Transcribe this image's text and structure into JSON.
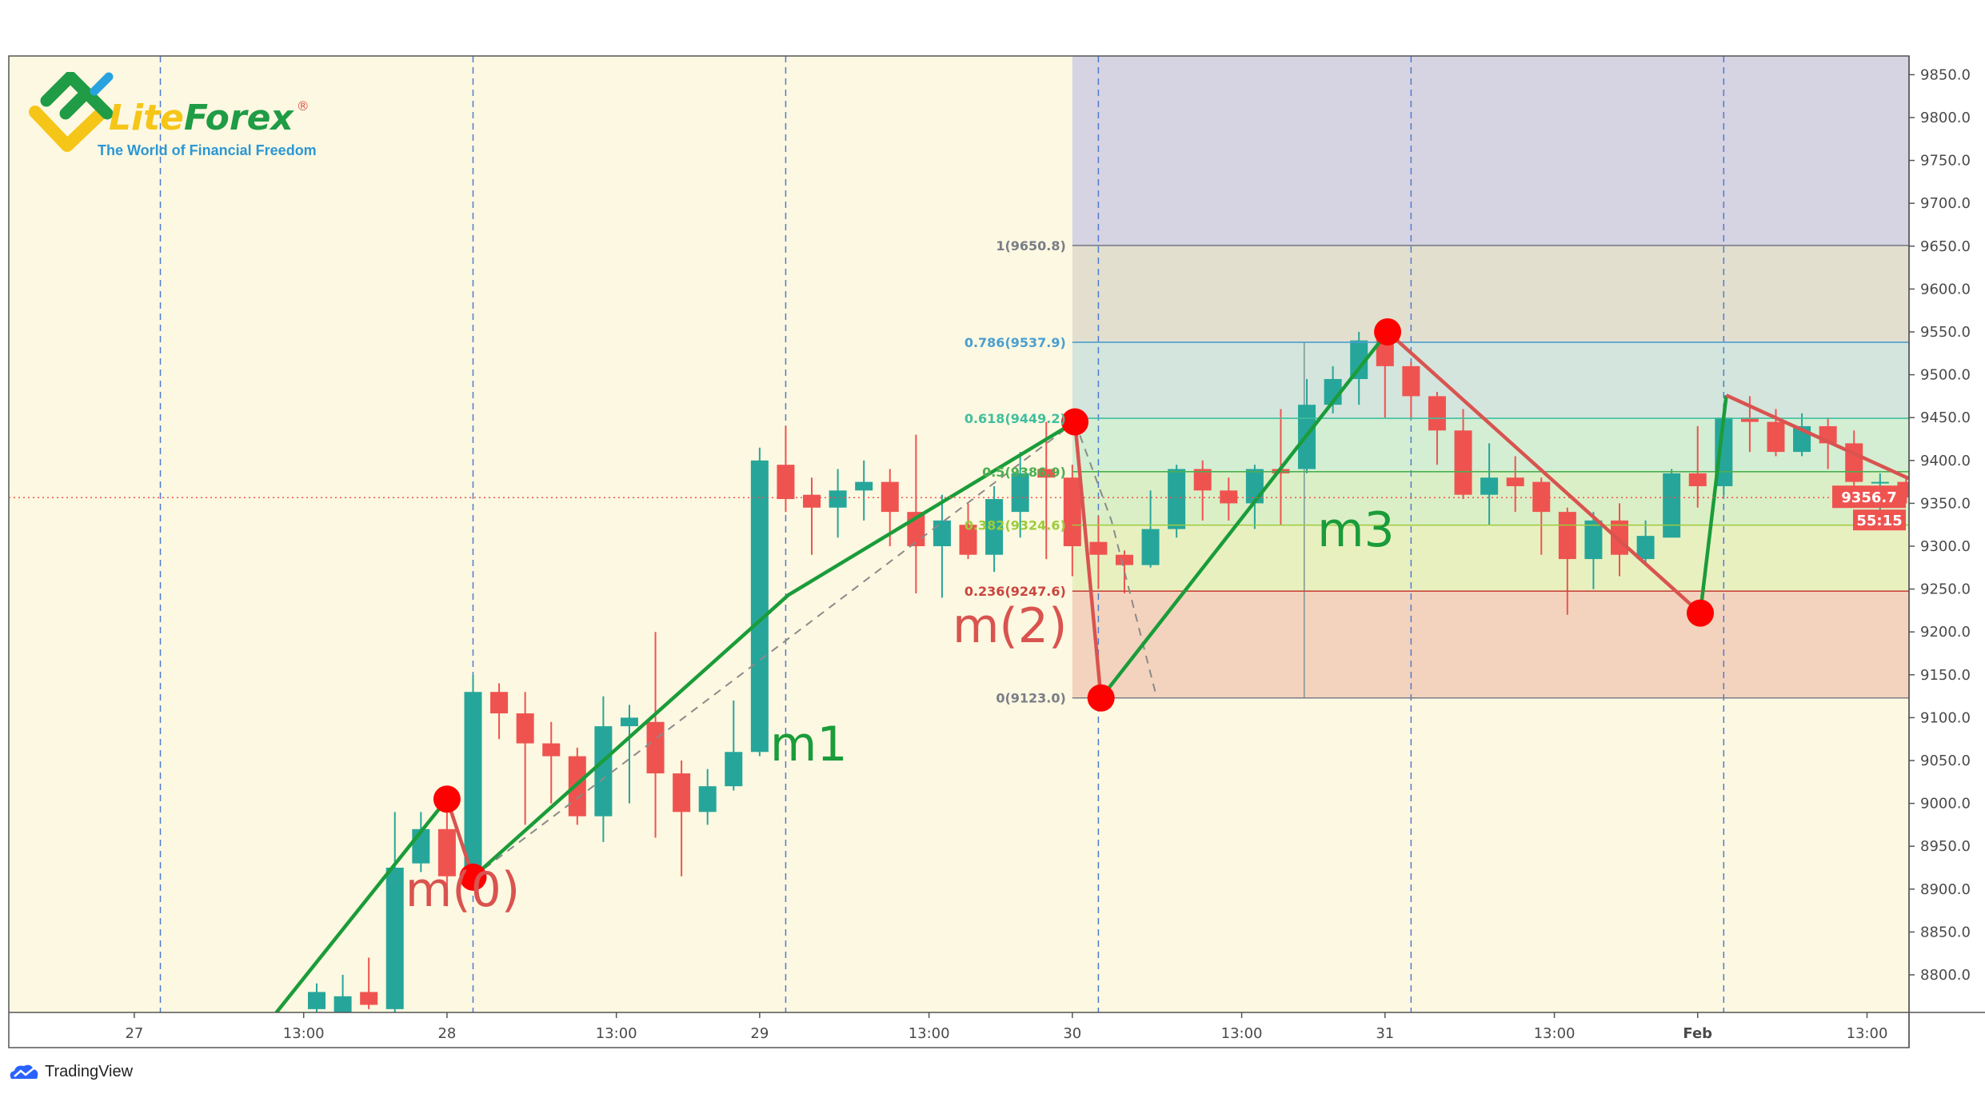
{
  "logo": {
    "brand_lite": "Lite",
    "brand_forex": "Forex",
    "registered": "®",
    "tagline": "The World of Financial Freedom"
  },
  "footer": {
    "tradingview_label": "TradingView"
  },
  "colors": {
    "up": "#26a69a",
    "down": "#ef5350",
    "background": "#fdf8e1",
    "wave_up": "#1a9c3a",
    "wave_down": "#d9534f",
    "pivot": "#ff0000",
    "day_line": "#4f7bd1"
  },
  "chart_data": {
    "type": "candlestick",
    "title": "",
    "interval_hours": 2,
    "first_candle": "27 14:00",
    "ylim": [
      8760,
      9880
    ],
    "y_ticks": [
      "9850.0",
      "9800.0",
      "9750.0",
      "9700.0",
      "9650.0",
      "9600.0",
      "9550.0",
      "9500.0",
      "9450.0",
      "9400.0",
      "9350.0",
      "9300.0",
      "9250.0",
      "9200.0",
      "9150.0",
      "9100.0",
      "9050.0",
      "9000.0",
      "8950.0",
      "8900.0",
      "8850.0",
      "8800.0"
    ],
    "x_ticks": [
      {
        "label": "27",
        "index": -7,
        "bold": false
      },
      {
        "label": "13:00",
        "index": -0.5,
        "bold": false
      },
      {
        "label": "28",
        "index": 5,
        "bold": false
      },
      {
        "label": "13:00",
        "index": 11.5,
        "bold": false
      },
      {
        "label": "29",
        "index": 17,
        "bold": false
      },
      {
        "label": "13:00",
        "index": 23.5,
        "bold": false
      },
      {
        "label": "30",
        "index": 29,
        "bold": false
      },
      {
        "label": "13:00",
        "index": 35.5,
        "bold": false
      },
      {
        "label": "31",
        "index": 41,
        "bold": false
      },
      {
        "label": "13:00",
        "index": 47.5,
        "bold": false
      },
      {
        "label": "Feb",
        "index": 53,
        "bold": true
      },
      {
        "label": "13:00",
        "index": 59.5,
        "bold": false
      }
    ],
    "day_separators": [
      -6,
      6,
      18,
      30,
      42,
      54
    ],
    "candles": [
      [
        8760,
        8790,
        8750,
        8780
      ],
      [
        8755,
        8800,
        8745,
        8775
      ],
      [
        8780,
        8820,
        8760,
        8765
      ],
      [
        8760,
        8990,
        8750,
        8925
      ],
      [
        8930,
        8990,
        8920,
        8970
      ],
      [
        8970,
        9010,
        8880,
        8915
      ],
      [
        8915,
        9150,
        8910,
        9130
      ],
      [
        9130,
        9140,
        9075,
        9105
      ],
      [
        9105,
        9130,
        8975,
        9070
      ],
      [
        9070,
        9095,
        9000,
        9055
      ],
      [
        9055,
        9065,
        8975,
        8985
      ],
      [
        8985,
        9125,
        8955,
        9090
      ],
      [
        9090,
        9115,
        9000,
        9100
      ],
      [
        9095,
        9200,
        8960,
        9035
      ],
      [
        9035,
        9050,
        8915,
        8990
      ],
      [
        8990,
        9040,
        8975,
        9020
      ],
      [
        9020,
        9120,
        9015,
        9060
      ],
      [
        9060,
        9415,
        9055,
        9400
      ],
      [
        9395,
        9440,
        9340,
        9355
      ],
      [
        9360,
        9380,
        9290,
        9345
      ],
      [
        9345,
        9390,
        9310,
        9365
      ],
      [
        9365,
        9400,
        9330,
        9375
      ],
      [
        9375,
        9390,
        9300,
        9340
      ],
      [
        9340,
        9430,
        9245,
        9300
      ],
      [
        9300,
        9360,
        9240,
        9330
      ],
      [
        9325,
        9350,
        9285,
        9290
      ],
      [
        9290,
        9370,
        9270,
        9355
      ],
      [
        9340,
        9410,
        9310,
        9385
      ],
      [
        9390,
        9445,
        9285,
        9380
      ],
      [
        9380,
        9395,
        9265,
        9300
      ],
      [
        9305,
        9335,
        9250,
        9290
      ],
      [
        9290,
        9295,
        9245,
        9278
      ],
      [
        9278,
        9365,
        9275,
        9320
      ],
      [
        9320,
        9395,
        9310,
        9390
      ],
      [
        9390,
        9400,
        9330,
        9365
      ],
      [
        9365,
        9380,
        9330,
        9350
      ],
      [
        9350,
        9395,
        9320,
        9390
      ],
      [
        9390,
        9460,
        9325,
        9385
      ],
      [
        9390,
        9495,
        9385,
        9465
      ],
      [
        9465,
        9510,
        9455,
        9495
      ],
      [
        9495,
        9550,
        9465,
        9540
      ],
      [
        9545,
        9555,
        9450,
        9510
      ],
      [
        9510,
        9515,
        9450,
        9475
      ],
      [
        9475,
        9480,
        9395,
        9435
      ],
      [
        9435,
        9460,
        9355,
        9360
      ],
      [
        9360,
        9420,
        9325,
        9380
      ],
      [
        9380,
        9405,
        9340,
        9370
      ],
      [
        9375,
        9380,
        9290,
        9340
      ],
      [
        9340,
        9345,
        9220,
        9285
      ],
      [
        9285,
        9340,
        9250,
        9330
      ],
      [
        9330,
        9350,
        9265,
        9290
      ],
      [
        9285,
        9330,
        9280,
        9312
      ],
      [
        9310,
        9390,
        9310,
        9385
      ],
      [
        9385,
        9440,
        9345,
        9370
      ],
      [
        9370,
        9465,
        9360,
        9450
      ],
      [
        9450,
        9475,
        9410,
        9445
      ],
      [
        9445,
        9460,
        9405,
        9410
      ],
      [
        9410,
        9455,
        9405,
        9440
      ],
      [
        9440,
        9450,
        9390,
        9420
      ],
      [
        9420,
        9435,
        9365,
        9375
      ],
      [
        9375,
        9385,
        9320,
        9375
      ],
      [
        9375,
        9380,
        9350,
        9356.7
      ]
    ],
    "fibonacci": {
      "start_index": 29,
      "levels": [
        {
          "ratio": "1",
          "price": 9650.8,
          "label": "1(9650.8)",
          "color": "#7a7d88",
          "fill": "#e3dfcf"
        },
        {
          "ratio": "0.786",
          "price": 9537.9,
          "label": "0.786(9537.9)",
          "color": "#4a9fd0",
          "fill": "#d3e5dc"
        },
        {
          "ratio": "0.618",
          "price": 9449.2,
          "label": "0.618(9449.2)",
          "color": "#3fbf9f",
          "fill": "#d3eed3"
        },
        {
          "ratio": "0.5",
          "price": 9386.9,
          "label": "0.5(9386.9)",
          "color": "#4caf50",
          "fill": "#daefc6"
        },
        {
          "ratio": "0.382",
          "price": 9324.6,
          "label": "0.382(9324.6)",
          "color": "#9ccc3c",
          "fill": "#e8f0c0"
        },
        {
          "ratio": "0.236",
          "price": 9247.6,
          "label": "0.236(9247.6)",
          "color": "#c9453f",
          "fill": "#f3d3bd"
        },
        {
          "ratio": "0",
          "price": 9123.0,
          "label": "0(9123.0)",
          "color": "#7a7d88",
          "fill": null
        }
      ],
      "top_fill": "#d6d3e3"
    },
    "wave_lines": [
      {
        "color": "up",
        "points": [
          [
            -1.55,
            8756
          ],
          [
            5,
            9005
          ]
        ]
      },
      {
        "color": "down",
        "points": [
          [
            5,
            9005
          ],
          [
            6,
            8914
          ]
        ]
      },
      {
        "color": "up",
        "points": [
          [
            6,
            8914
          ],
          [
            18.1,
            9243
          ],
          [
            29.1,
            9445
          ]
        ]
      },
      {
        "color": "down",
        "points": [
          [
            29.1,
            9445
          ],
          [
            30.1,
            9123
          ]
        ]
      },
      {
        "color": "up",
        "points": [
          [
            30.1,
            9123
          ],
          [
            41.1,
            9550
          ]
        ]
      },
      {
        "color": "down",
        "points": [
          [
            41.1,
            9550
          ],
          [
            53.1,
            9222
          ]
        ]
      },
      {
        "color": "up",
        "points": [
          [
            53.1,
            9222
          ],
          [
            54.1,
            9476
          ]
        ]
      },
      {
        "color": "down",
        "points": [
          [
            54.1,
            9476
          ],
          [
            61.1,
            9379
          ]
        ]
      }
    ],
    "dashed_lines": [
      [
        [
          6,
          8914
        ],
        [
          29.1,
          9445
        ]
      ],
      [
        [
          29.1,
          9445
        ],
        [
          30.5,
          9330
        ],
        [
          32.2,
          9128
        ]
      ]
    ],
    "pivots": [
      [
        5,
        9005
      ],
      [
        6,
        8914
      ],
      [
        29.1,
        9445
      ],
      [
        30.1,
        9123
      ],
      [
        41.1,
        9550
      ],
      [
        53.1,
        9222
      ]
    ],
    "wave_labels": [
      {
        "text": "m(0)",
        "index": 3.4,
        "price": 8880,
        "color": "down"
      },
      {
        "text": "m1",
        "index": 17.4,
        "price": 9050,
        "color": "up"
      },
      {
        "text": "m(2)",
        "index": 24.4,
        "price": 9205,
        "color": "down"
      },
      {
        "text": "m3",
        "index": 38.4,
        "price": 9300,
        "color": "up"
      }
    ],
    "current_price": {
      "value": "9356.7",
      "price": 9356.7,
      "countdown": "55:15"
    }
  }
}
